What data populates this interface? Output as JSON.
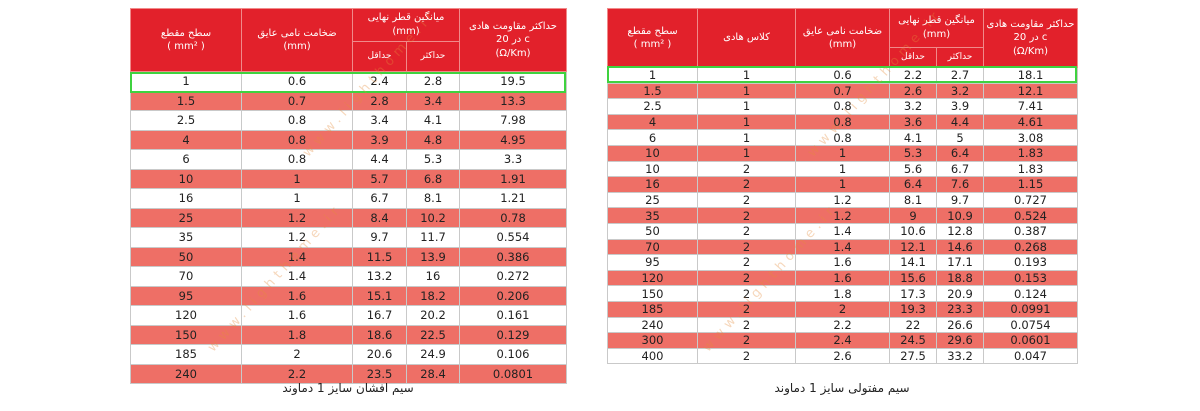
{
  "left_table": {
    "headers": {
      "resistance_title": "حداکثر مقاومت هادی",
      "resistance_temp": "در 20 c",
      "resistance_unit": "(Ω/Km)",
      "diameter_title": "میانگین قطر نهایی",
      "diameter_unit": "(mm)",
      "max_label": "حداکثر",
      "min_label": "حداقل",
      "insulation_title": "ضخامت نامی عایق",
      "insulation_unit": "(mm)",
      "section_title": "سطح مقطع",
      "section_unit": "( mm² )"
    },
    "rows": [
      [
        "1",
        "0.6",
        "2.4",
        "2.8",
        "19.5"
      ],
      [
        "1.5",
        "0.7",
        "2.8",
        "3.4",
        "13.3"
      ],
      [
        "2.5",
        "0.8",
        "3.4",
        "4.1",
        "7.98"
      ],
      [
        "4",
        "0.8",
        "3.9",
        "4.8",
        "4.95"
      ],
      [
        "6",
        "0.8",
        "4.4",
        "5.3",
        "3.3"
      ],
      [
        "10",
        "1",
        "5.7",
        "6.8",
        "1.91"
      ],
      [
        "16",
        "1",
        "6.7",
        "8.1",
        "1.21"
      ],
      [
        "25",
        "1.2",
        "8.4",
        "10.2",
        "0.78"
      ],
      [
        "35",
        "1.2",
        "9.7",
        "11.7",
        "0.554"
      ],
      [
        "50",
        "1.4",
        "11.5",
        "13.9",
        "0.386"
      ],
      [
        "70",
        "1.4",
        "13.2",
        "16",
        "0.272"
      ],
      [
        "95",
        "1.6",
        "15.1",
        "18.2",
        "0.206"
      ],
      [
        "120",
        "1.6",
        "16.7",
        "20.2",
        "0.161"
      ],
      [
        "150",
        "1.8",
        "18.6",
        "22.5",
        "0.129"
      ],
      [
        "185",
        "2",
        "20.6",
        "24.9",
        "0.106"
      ],
      [
        "240",
        "2.2",
        "23.5",
        "28.4",
        "0.0801"
      ]
    ],
    "caption": "سیم افشان سایز 1 دماوند"
  },
  "right_table": {
    "headers": {
      "resistance_title": "حداکثر مقاومت هادی",
      "resistance_temp": "در 20 c",
      "resistance_unit": "(Ω/Km)",
      "diameter_title": "میانگین قطر نهایی",
      "diameter_unit": "(mm)",
      "max_label": "حداکثر",
      "min_label": "حداقل",
      "insulation_title": "ضخامت نامی عایق",
      "insulation_unit": "(mm)",
      "class_title": "کلاس هادی",
      "section_title": "سطح مقطع",
      "section_unit": "( mm² )"
    },
    "rows": [
      [
        "1",
        "1",
        "0.6",
        "2.2",
        "2.7",
        "18.1"
      ],
      [
        "1.5",
        "1",
        "0.7",
        "2.6",
        "3.2",
        "12.1"
      ],
      [
        "2.5",
        "1",
        "0.8",
        "3.2",
        "3.9",
        "7.41"
      ],
      [
        "4",
        "1",
        "0.8",
        "3.6",
        "4.4",
        "4.61"
      ],
      [
        "6",
        "1",
        "0.8",
        "4.1",
        "5",
        "3.08"
      ],
      [
        "10",
        "1",
        "1",
        "5.3",
        "6.4",
        "1.83"
      ],
      [
        "10",
        "2",
        "1",
        "5.6",
        "6.7",
        "1.83"
      ],
      [
        "16",
        "2",
        "1",
        "6.4",
        "7.6",
        "1.15"
      ],
      [
        "25",
        "2",
        "1.2",
        "8.1",
        "9.7",
        "0.727"
      ],
      [
        "35",
        "2",
        "1.2",
        "9",
        "10.9",
        "0.524"
      ],
      [
        "50",
        "2",
        "1.4",
        "10.6",
        "12.8",
        "0.387"
      ],
      [
        "70",
        "2",
        "1.4",
        "12.1",
        "14.6",
        "0.268"
      ],
      [
        "95",
        "2",
        "1.6",
        "14.1",
        "17.1",
        "0.193"
      ],
      [
        "120",
        "2",
        "1.6",
        "15.6",
        "18.8",
        "0.153"
      ],
      [
        "150",
        "2",
        "1.8",
        "17.3",
        "20.9",
        "0.124"
      ],
      [
        "185",
        "2",
        "2",
        "19.3",
        "23.3",
        "0.0991"
      ],
      [
        "240",
        "2",
        "2.2",
        "22",
        "26.6",
        "0.0754"
      ],
      [
        "300",
        "2",
        "2.4",
        "24.5",
        "29.6",
        "0.0601"
      ],
      [
        "400",
        "2",
        "2.6",
        "27.5",
        "33.2",
        "0.047"
      ]
    ],
    "caption": "سیم مفتولی سایز 1 دماوند"
  },
  "watermark": "www.lighthome.ir",
  "colors": {
    "header_red": "#e2212b",
    "row_pink": "#ee6f66",
    "highlight_green": "#3fd23f"
  }
}
